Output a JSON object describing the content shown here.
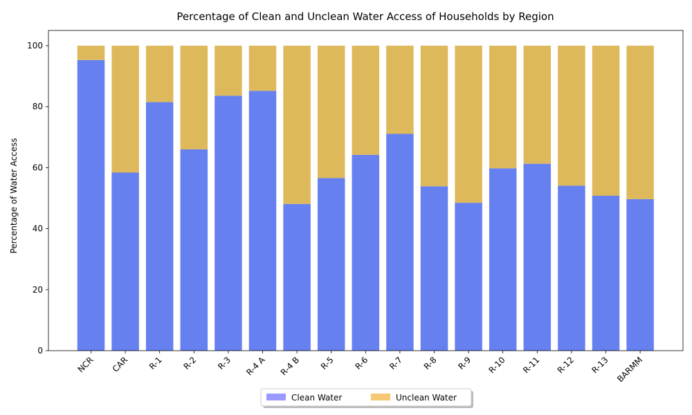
{
  "chart_data": {
    "type": "bar",
    "stacked": true,
    "title": "Percentage of Clean and Unclean Water Access of Households by Region",
    "ylabel": "Percentage of Water Access",
    "xlabel": "",
    "ylim": [
      0,
      105
    ],
    "yticks": [
      0,
      20,
      40,
      60,
      80,
      100
    ],
    "categories": [
      "NCR",
      "CAR",
      "R-1",
      "R-2",
      "R-3",
      "R-4 A",
      "R-4 B",
      "R-5",
      "R-6",
      "R-7",
      "R-8",
      "R-9",
      "R-10",
      "R-11",
      "R-12",
      "R-13",
      "BARMM"
    ],
    "series": [
      {
        "name": "Clean Water",
        "color": "#6680f0",
        "legend_color": "#9999ff",
        "values": [
          95.3,
          58.4,
          81.5,
          66.0,
          83.6,
          85.2,
          48.1,
          56.6,
          64.2,
          71.1,
          53.9,
          48.5,
          59.8,
          61.3,
          54.1,
          50.8,
          49.7
        ]
      },
      {
        "name": "Unclean Water",
        "color": "#deb95b",
        "legend_color": "#f5c873",
        "values": [
          4.7,
          41.6,
          18.5,
          34.0,
          16.4,
          14.8,
          51.9,
          43.4,
          35.8,
          28.9,
          46.1,
          51.5,
          40.2,
          38.7,
          45.9,
          49.2,
          50.3
        ]
      }
    ],
    "grid": false,
    "legend_position": "bottom-center"
  }
}
